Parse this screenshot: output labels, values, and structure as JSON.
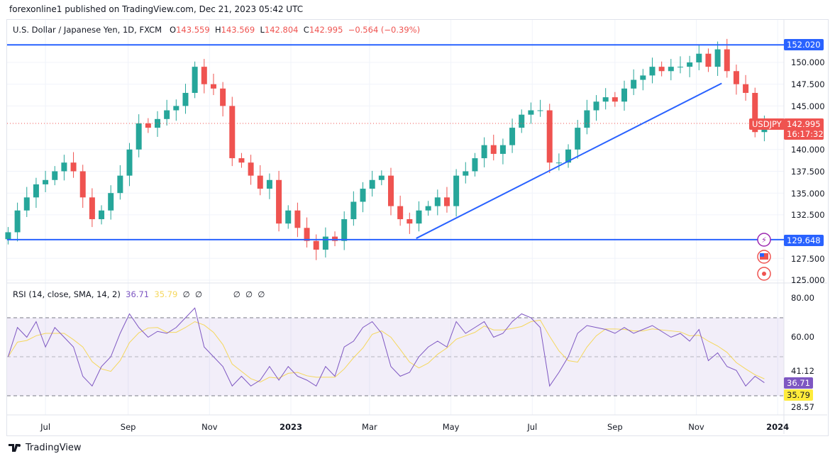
{
  "header": {
    "published": "forexonline1 published on TradingView.com, Dec 21, 2023 05:42 UTC"
  },
  "legend": {
    "symbol": "U.S. Dollar / Japanese Yen, 1D, FXCM",
    "o_label": "O",
    "o": "143.559",
    "h_label": "H",
    "h": "143.569",
    "l_label": "L",
    "l": "142.804",
    "c_label": "C",
    "c": "142.995",
    "change": "−0.564 (−0.39%)"
  },
  "rsi_legend": {
    "title": "RSI (14, close, SMA, 14, 2)",
    "rsi": "36.71",
    "sma": "35.79",
    "empty1": "∅",
    "empty2": "∅",
    "empty3": "∅",
    "empty4": "∅",
    "empty5": "∅"
  },
  "price_axis": {
    "ticks": [
      "150.000",
      "147.500",
      "145.000",
      "140.000",
      "137.500",
      "135.000",
      "132.500",
      "127.500",
      "125.000"
    ],
    "tick_values": [
      150,
      147.5,
      145,
      140,
      137.5,
      135,
      132.5,
      127.5,
      125
    ],
    "resistance": "152.020",
    "support": "129.648",
    "last_price": "142.995",
    "countdown": "16:17:32",
    "symbol_tag": "USDJPY"
  },
  "rsi_axis": {
    "ticks": [
      "80.00",
      "60.00",
      "41.12",
      "28.57"
    ],
    "tick_values": [
      80,
      60,
      41.12,
      28.57
    ],
    "rsi_tag": "36.71",
    "sma_tag": "35.79"
  },
  "time_axis": {
    "labels": [
      "Jul",
      "Sep",
      "Nov",
      "2023",
      "Mar",
      "May",
      "Jul",
      "Sep",
      "Nov",
      "2024"
    ],
    "dates": [
      "2022-07-01",
      "2022-09-01",
      "2022-11-01",
      "2023-01-01",
      "2023-03-01",
      "2023-05-01",
      "2023-07-01",
      "2023-09-01",
      "2023-11-01",
      "2024-01-01"
    ]
  },
  "footer": {
    "brand": "TradingView"
  },
  "colors": {
    "up": "#26a69a",
    "down": "#ef5350",
    "line": "#2962ff",
    "rsi": "#7e57c2",
    "sma": "#f5d75c"
  },
  "chart_data": {
    "type": "candlestick",
    "title": "U.S. Dollar / Japanese Yen, 1D, FXCM",
    "start_date": "2022-06-03",
    "step_days": 7,
    "closes": [
      130.5,
      133,
      134.5,
      136,
      136.5,
      137.5,
      138.5,
      137.5,
      134.5,
      132,
      133,
      135,
      137,
      140,
      143,
      142.5,
      143.5,
      144.5,
      145,
      146.5,
      149.5,
      147.5,
      147,
      145,
      139,
      138.5,
      137,
      135.5,
      136.5,
      131.5,
      133,
      131,
      129.5,
      128.5,
      130,
      129.5,
      132,
      134,
      135.5,
      136.5,
      137,
      133.5,
      132,
      131.5,
      133,
      133.5,
      134.5,
      133.5,
      137,
      137.5,
      139,
      140.5,
      139.5,
      140.5,
      142.5,
      144,
      144.5,
      144.5,
      138.5,
      138.5,
      140,
      142.5,
      144.5,
      145.5,
      146,
      145.5,
      147,
      148,
      148.5,
      149.5,
      149,
      149.5,
      149.5,
      150,
      151,
      149.5,
      151.5,
      149,
      147.5,
      146.5,
      142,
      142.995
    ],
    "ylim": [
      124.5,
      153
    ],
    "horizontal_lines": [
      152.02,
      129.648
    ],
    "trendline": [
      {
        "date": "2023-04-05",
        "price": 129.8
      },
      {
        "date": "2023-11-20",
        "price": 147.6
      }
    ],
    "rsi": {
      "ylim": [
        20,
        85
      ],
      "bands": [
        70,
        50,
        30
      ],
      "values": [
        50,
        65,
        60,
        68,
        55,
        65,
        60,
        55,
        40,
        35,
        45,
        50,
        62,
        72,
        65,
        60,
        63,
        62,
        65,
        70,
        75,
        55,
        50,
        45,
        35,
        40,
        35,
        38,
        45,
        38,
        45,
        40,
        38,
        35,
        45,
        40,
        55,
        58,
        65,
        68,
        62,
        45,
        40,
        42,
        50,
        55,
        58,
        55,
        68,
        62,
        65,
        68,
        60,
        62,
        68,
        72,
        70,
        65,
        35,
        42,
        50,
        62,
        66,
        65,
        64,
        62,
        65,
        62,
        64,
        66,
        63,
        60,
        62,
        58,
        64,
        48,
        52,
        45,
        43,
        35,
        40,
        36.71
      ]
    }
  }
}
